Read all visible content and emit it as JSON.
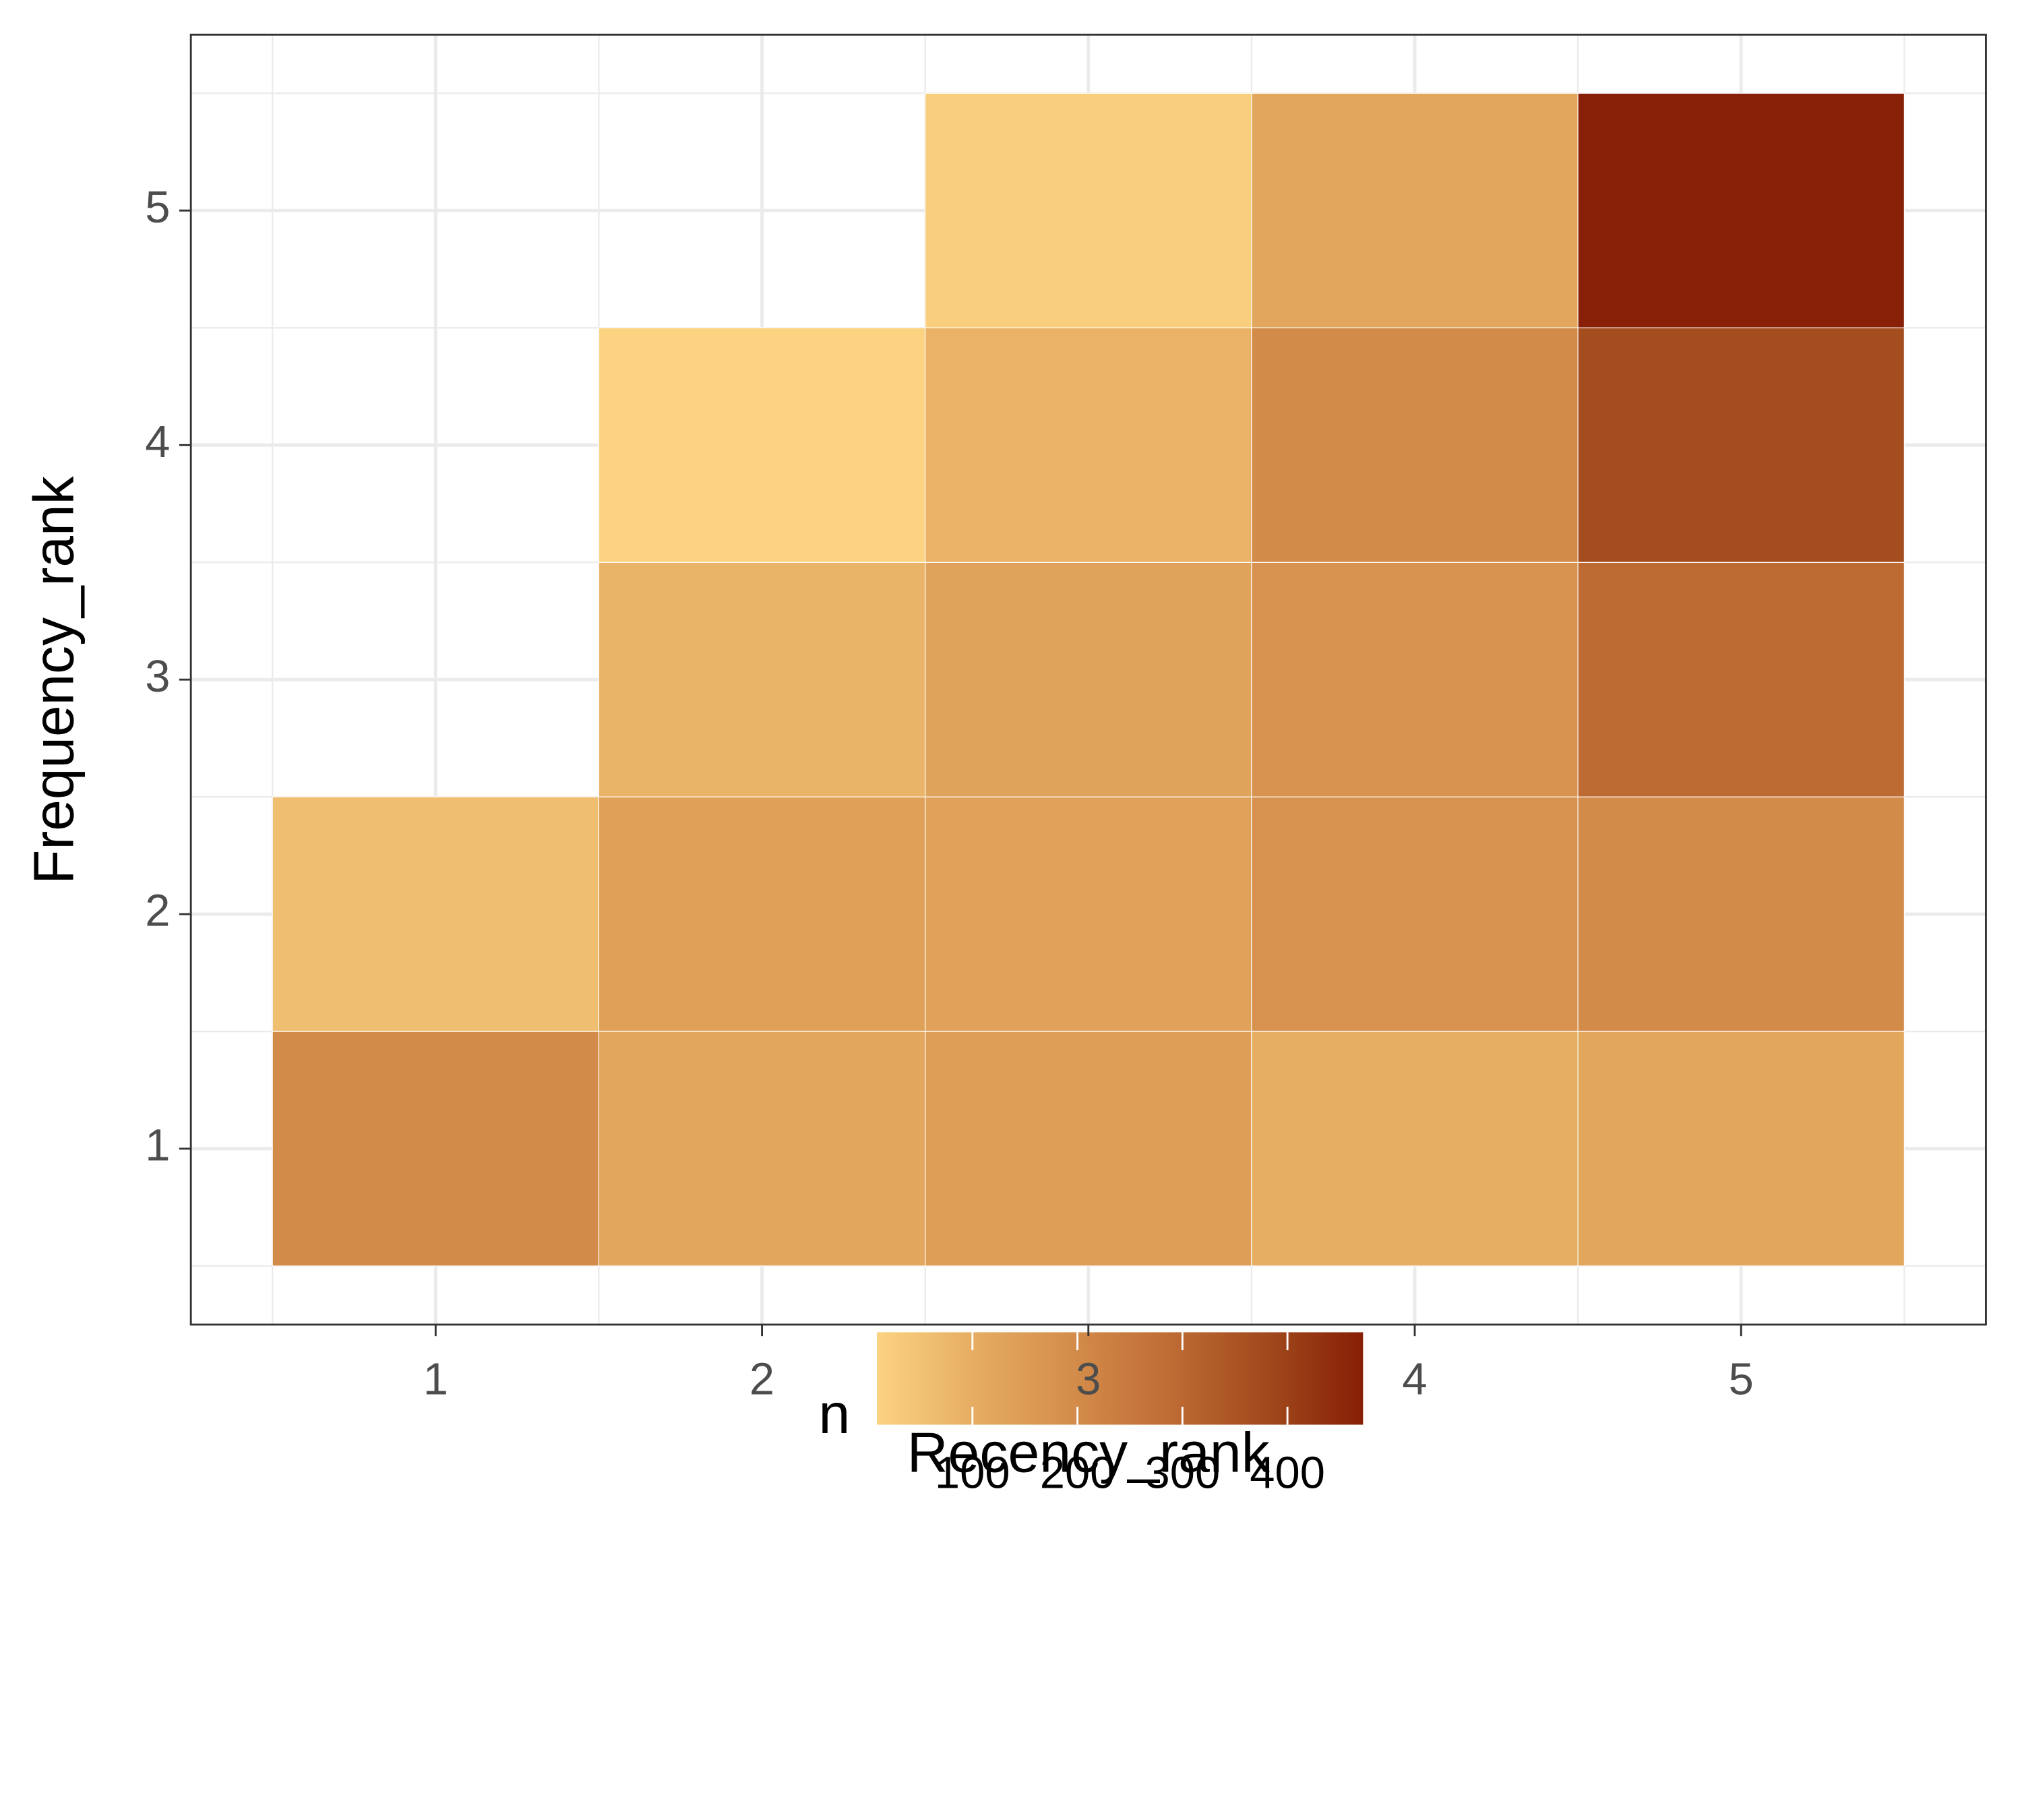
{
  "chart_data": {
    "type": "heatmap",
    "x_label": "Recency_rank",
    "y_label": "Frequency_rank",
    "x": [
      1,
      2,
      3,
      4,
      5
    ],
    "y": [
      1,
      2,
      3,
      4,
      5
    ],
    "values": [
      [
        200,
        120,
        145,
        100,
        120
      ],
      [
        60,
        140,
        135,
        180,
        200
      ],
      [
        null,
        85,
        130,
        180,
        290
      ],
      [
        null,
        10,
        90,
        200,
        370
      ],
      [
        null,
        null,
        20,
        120,
        470
      ]
    ],
    "xlim": [
      0.25,
      5.75
    ],
    "ylim": [
      0.25,
      5.75
    ],
    "xticks": [
      1,
      2,
      3,
      4,
      5
    ],
    "yticks": [
      1,
      2,
      3,
      4,
      5
    ],
    "grid": true,
    "legend_title": "n",
    "legend_position": "bottom",
    "colormap": [
      "#FBD381",
      "#E6AD62",
      "#D48D4B",
      "#BF6C34",
      "#A14A1D",
      "#861F05"
    ],
    "clim": [
      9,
      472
    ],
    "cticks": [
      100,
      200,
      300,
      400
    ]
  }
}
